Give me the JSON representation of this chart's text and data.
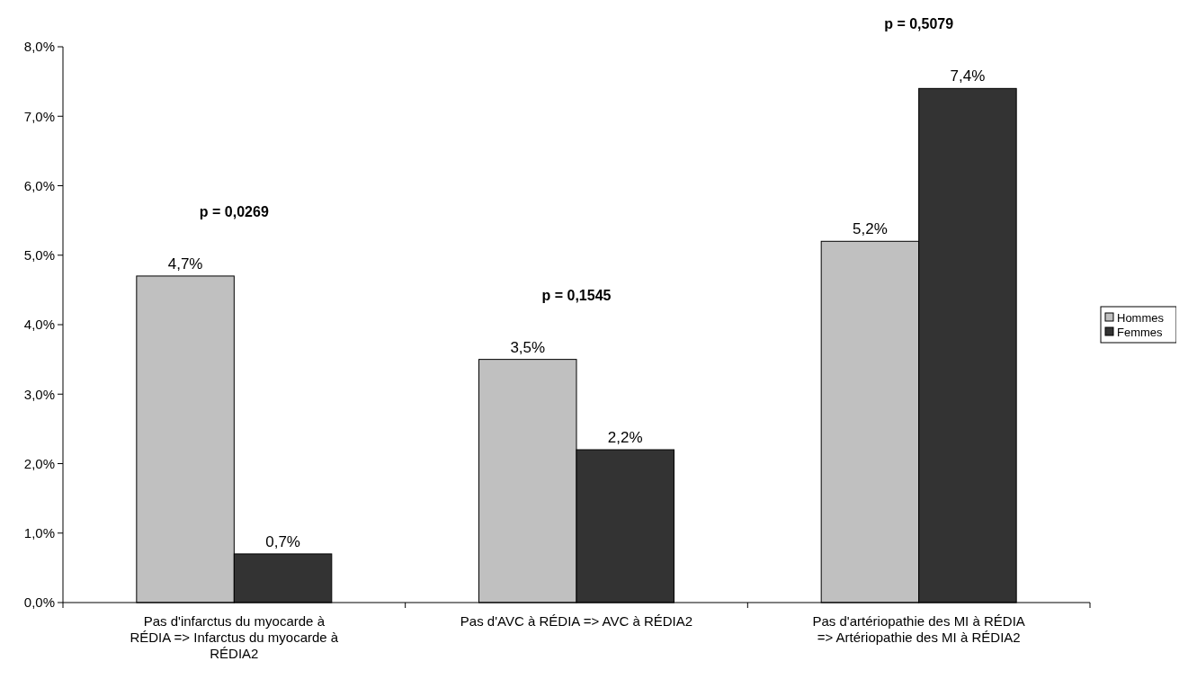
{
  "chart_data": {
    "type": "bar",
    "categories": [
      "Pas d'infarctus du myocarde à RÉDIA => Infarctus du myocarde à RÉDIA2",
      "Pas d'AVC à RÉDIA => AVC à RÉDIA2",
      "Pas d'artériopathie des MI à RÉDIA => Artériopathie des MI à RÉDIA2"
    ],
    "series": [
      {
        "name": "Hommes",
        "color": "#c0c0c0",
        "values": [
          4.7,
          3.5,
          5.2
        ],
        "value_labels": [
          "4,7%",
          "3,5%",
          "5,2%"
        ]
      },
      {
        "name": "Femmes",
        "color": "#333333",
        "values": [
          0.7,
          2.2,
          7.4
        ],
        "value_labels": [
          "0,7%",
          "2,2%",
          "7,4%"
        ]
      }
    ],
    "ylim": [
      0,
      8
    ],
    "yticks": [
      {
        "value": 0,
        "label": "0,0%"
      },
      {
        "value": 1,
        "label": "1,0%"
      },
      {
        "value": 2,
        "label": "2,0%"
      },
      {
        "value": 3,
        "label": "3,0%"
      },
      {
        "value": 4,
        "label": "4,0%"
      },
      {
        "value": 5,
        "label": "5,0%"
      },
      {
        "value": 6,
        "label": "6,0%"
      },
      {
        "value": 7,
        "label": "7,0%"
      },
      {
        "value": 8,
        "label": "8,0%"
      }
    ],
    "annotations": [
      "p = 0,0269",
      "p = 0,1545",
      "p = 0,5079"
    ],
    "legend": "right",
    "grid": false
  }
}
